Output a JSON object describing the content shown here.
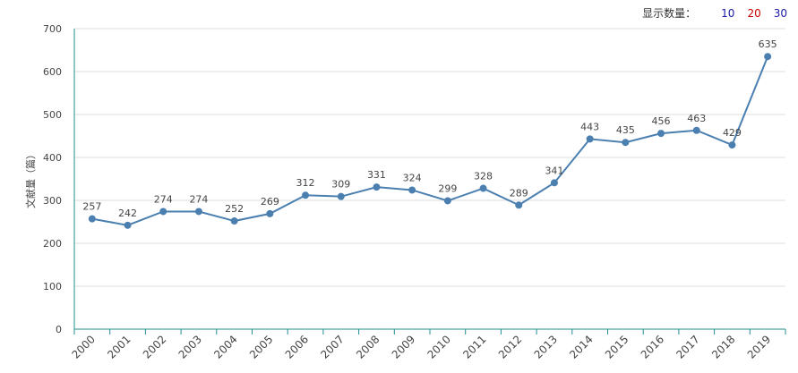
{
  "controls": {
    "label": "显示数量：",
    "options": [
      {
        "value": "10",
        "color": "#1a1aa6"
      },
      {
        "value": "20",
        "color": "#cc0000"
      },
      {
        "value": "30",
        "color": "#1a1aa6"
      }
    ]
  },
  "colors": {
    "line": "#4a7fb0",
    "axis": "#1f8f8f",
    "grid": "#dddddd",
    "text": "#444444"
  },
  "chart_data": {
    "type": "line",
    "ylabel": "文献量（篇）",
    "ylim": [
      0,
      700
    ],
    "yticks": [
      0,
      100,
      200,
      300,
      400,
      500,
      600,
      700
    ],
    "grid": true,
    "categories": [
      "2000",
      "2001",
      "2002",
      "2003",
      "2004",
      "2005",
      "2006",
      "2007",
      "2008",
      "2009",
      "2010",
      "2011",
      "2012",
      "2013",
      "2014",
      "2015",
      "2016",
      "2017",
      "2018",
      "2019"
    ],
    "values": [
      257,
      242,
      274,
      274,
      252,
      269,
      312,
      309,
      331,
      324,
      299,
      328,
      289,
      341,
      443,
      435,
      456,
      463,
      429,
      635
    ]
  }
}
